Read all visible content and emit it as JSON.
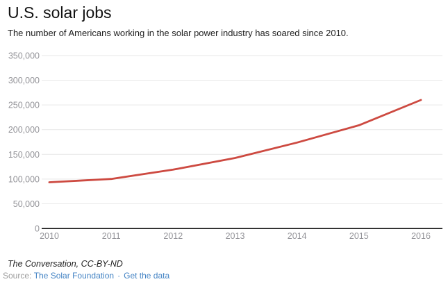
{
  "header": {
    "title": "U.S. solar jobs",
    "subtitle": "The number of Americans working in the solar power industry has soared since 2010."
  },
  "chart_data": {
    "type": "line",
    "title": "U.S. solar jobs",
    "x": [
      2010,
      2011,
      2012,
      2013,
      2014,
      2015,
      2016
    ],
    "series": [
      {
        "name": "U.S. solar jobs",
        "values": [
          93502,
          100237,
          119016,
          142698,
          173807,
          208859,
          260077
        ]
      }
    ],
    "xlabel": "",
    "ylabel": "",
    "ylim": [
      0,
      350000
    ],
    "yticks": [
      0,
      50000,
      100000,
      150000,
      200000,
      250000,
      300000,
      350000
    ],
    "ytick_labels": [
      "0",
      "50,000",
      "100,000",
      "150,000",
      "200,000",
      "250,000",
      "300,000",
      "350,000"
    ],
    "grid": true,
    "legend": "none"
  },
  "colors": {
    "line": "#cd4a41",
    "grid": "#e7e7e7",
    "axis": "#333333",
    "tick_label": "#939398",
    "link": "#4383c4",
    "source_label": "#9b9b9b"
  },
  "footer": {
    "attribution": "The Conversation, CC-BY-ND",
    "source_label": "Source:",
    "source_link": "The Solar Foundation",
    "separator": "·",
    "data_link": "Get the data"
  }
}
